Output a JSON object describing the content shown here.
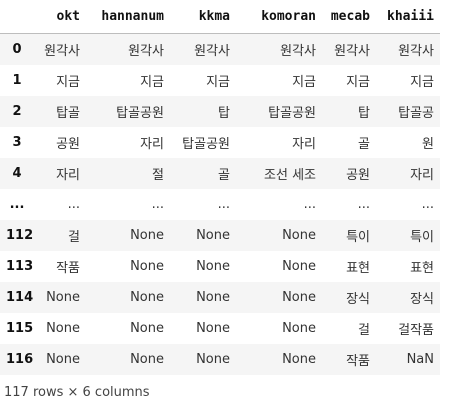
{
  "table": {
    "columns": [
      "okt",
      "hannanum",
      "kkma",
      "komoran",
      "mecab",
      "khaiii"
    ],
    "rows": [
      {
        "index": "0",
        "cells": [
          "원각사",
          "원각사",
          "원각사",
          "원각사",
          "원각사",
          "원각사"
        ]
      },
      {
        "index": "1",
        "cells": [
          "지금",
          "지금",
          "지금",
          "지금",
          "지금",
          "지금"
        ]
      },
      {
        "index": "2",
        "cells": [
          "탑골",
          "탑골공원",
          "탑",
          "탑골공원",
          "탑",
          "탑골공"
        ]
      },
      {
        "index": "3",
        "cells": [
          "공원",
          "자리",
          "탑골공원",
          "자리",
          "골",
          "원"
        ]
      },
      {
        "index": "4",
        "cells": [
          "자리",
          "절",
          "골",
          "조선 세조",
          "공원",
          "자리"
        ]
      },
      {
        "index": "...",
        "cells": [
          "...",
          "...",
          "...",
          "...",
          "...",
          "..."
        ]
      },
      {
        "index": "112",
        "cells": [
          "걸",
          "None",
          "None",
          "None",
          "특이",
          "특이"
        ]
      },
      {
        "index": "113",
        "cells": [
          "작품",
          "None",
          "None",
          "None",
          "표현",
          "표현"
        ]
      },
      {
        "index": "114",
        "cells": [
          "None",
          "None",
          "None",
          "None",
          "장식",
          "장식"
        ]
      },
      {
        "index": "115",
        "cells": [
          "None",
          "None",
          "None",
          "None",
          "걸",
          "걸작품"
        ]
      },
      {
        "index": "116",
        "cells": [
          "None",
          "None",
          "None",
          "None",
          "작품",
          "NaN"
        ]
      }
    ]
  },
  "footer": "117 rows × 6 columns"
}
